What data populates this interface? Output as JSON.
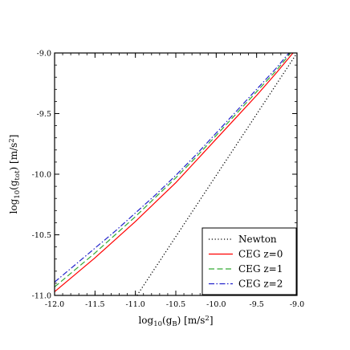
{
  "chart_data": {
    "type": "line",
    "xlabel": "log10(gB) [m/s2]",
    "ylabel": "log10(gtot) [m/s2]",
    "xlim": [
      -12.0,
      -9.0
    ],
    "ylim": [
      -11.0,
      -9.0
    ],
    "x_ticks": [
      -12.0,
      -11.5,
      -11.0,
      -10.5,
      -10.0,
      -9.5,
      -9.0
    ],
    "x_tick_labels": [
      "-12.0",
      "-11.5",
      "-11.0",
      "-10.5",
      "-10.0",
      "-9.5",
      "-9.0"
    ],
    "y_ticks": [
      -11.0,
      -10.5,
      -10.0,
      -9.5,
      -9.0
    ],
    "y_tick_labels": [
      "-11.0",
      "-10.5",
      "-10.0",
      "-9.5",
      "-9.0"
    ],
    "grid": false,
    "legend_position": "bottom-right",
    "series": [
      {
        "name": "Newton",
        "color": "#000000",
        "dash": "dotted",
        "x": [
          -10.98,
          -9.0
        ],
        "y": [
          -11.0,
          -9.0
        ]
      },
      {
        "name": "CEG z=0",
        "color": "#ff0000",
        "dash": "solid",
        "x": [
          -12.0,
          -11.75,
          -11.5,
          -11.25,
          -11.0,
          -10.75,
          -10.5,
          -10.25,
          -10.0,
          -9.75,
          -9.5,
          -9.25,
          -9.05
        ],
        "y": [
          -10.97,
          -10.83,
          -10.69,
          -10.54,
          -10.39,
          -10.23,
          -10.07,
          -9.89,
          -9.71,
          -9.53,
          -9.35,
          -9.16,
          -9.0
        ]
      },
      {
        "name": "CEG z=1",
        "color": "#33aa33",
        "dash": "dashed",
        "x": [
          -12.0,
          -11.75,
          -11.5,
          -11.25,
          -11.0,
          -10.75,
          -10.5,
          -10.25,
          -10.0,
          -9.75,
          -9.5,
          -9.25,
          -9.08
        ],
        "y": [
          -10.93,
          -10.79,
          -10.65,
          -10.5,
          -10.35,
          -10.19,
          -10.03,
          -9.86,
          -9.68,
          -9.5,
          -9.32,
          -9.14,
          -9.0
        ]
      },
      {
        "name": "CEG z=2",
        "color": "#2222cc",
        "dash": "dashdot",
        "x": [
          -12.0,
          -11.75,
          -11.5,
          -11.25,
          -11.0,
          -10.75,
          -10.5,
          -10.25,
          -10.0,
          -9.75,
          -9.5,
          -9.25,
          -9.1
        ],
        "y": [
          -10.89,
          -10.75,
          -10.61,
          -10.47,
          -10.32,
          -10.17,
          -10.01,
          -9.84,
          -9.66,
          -9.48,
          -9.3,
          -9.12,
          -9.0
        ]
      }
    ]
  }
}
